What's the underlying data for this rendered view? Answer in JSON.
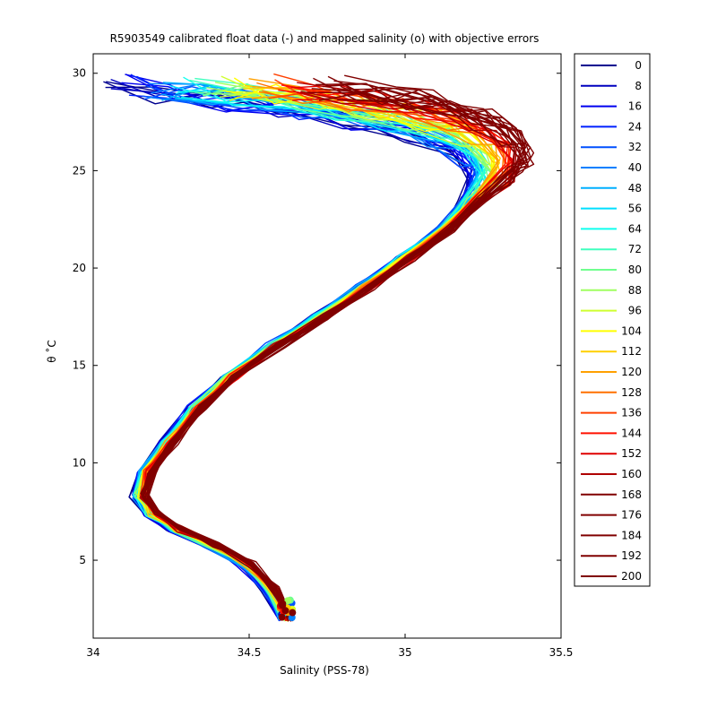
{
  "chart_data": {
    "type": "line",
    "title": "R5903549 calibrated float data (-) and mapped salinity (o) with objective errors",
    "xlabel": "Salinity (PSS-78)",
    "ylabel": "θ ˚C",
    "xlim": [
      34,
      35.5
    ],
    "ylim": [
      1,
      31
    ],
    "xticks": [
      "34",
      "34.5",
      "35",
      "35.5"
    ],
    "yticks": [
      "5",
      "10",
      "15",
      "20",
      "25",
      "30"
    ],
    "grid": false,
    "legend_position": "outside-right",
    "colormap": "jet",
    "legend": [
      "0",
      "8",
      "16",
      "24",
      "32",
      "40",
      "48",
      "56",
      "64",
      "72",
      "80",
      "88",
      "96",
      "104",
      "112",
      "120",
      "128",
      "136",
      "144",
      "152",
      "160",
      "168",
      "176",
      "184",
      "192",
      "200"
    ],
    "legend_colors": [
      "#00008f",
      "#0000bf",
      "#0000ef",
      "#0020ff",
      "#0050ff",
      "#0080ff",
      "#00afff",
      "#00dfff",
      "#10ffef",
      "#40ffbf",
      "#70ff8f",
      "#9fff60",
      "#cfff30",
      "#ffff00",
      "#ffcf00",
      "#ffa000",
      "#ff7000",
      "#ff4000",
      "#ff1000",
      "#df0000",
      "#af0000",
      "#800000",
      "#800000",
      "#800000",
      "#800000",
      "#800000"
    ],
    "representative_profile": {
      "salinity": [
        34.62,
        34.57,
        34.49,
        34.38,
        34.27,
        34.19,
        34.15,
        34.17,
        34.24,
        34.33,
        34.44,
        34.58,
        34.73,
        34.87,
        35.0,
        35.13,
        35.22,
        35.3,
        35.3,
        35.22,
        35.1,
        34.95,
        34.8,
        34.65,
        34.5
      ],
      "theta": [
        2,
        3.5,
        4.8,
        5.8,
        6.6,
        7.4,
        8.3,
        9.5,
        11.0,
        12.8,
        14.4,
        16.0,
        17.5,
        19.0,
        20.5,
        22.0,
        23.5,
        24.8,
        25.8,
        26.8,
        27.6,
        28.2,
        28.6,
        28.9,
        29.0
      ]
    },
    "profile_count": 26
  }
}
